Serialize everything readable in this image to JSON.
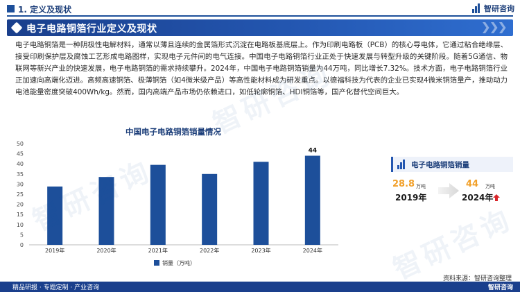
{
  "header": {
    "section_label": "1. 定义及现状",
    "logo_text": "智研咨询"
  },
  "banner": {
    "title": "电子电路铜箔行业定义及现状"
  },
  "paragraph": "电子电路铜箔是一种阴极性电解材料，通常以薄且连续的金属箔形式沉淀在电路板基底层上。作为印刷电路板（PCB）的核心导电体，它通过粘合绝缘层、接受印刷保护层及腐蚀工艺形成电路图样，实现电子元件间的电气连接。中国电子电路铜箔行业正处于快速发展与转型升级的关键阶段。随着5G通信、物联网等新兴产业的快速发展，电子电路铜箔的需求持续攀升。2024年，中国电子电路铜箔销量为44万吨，同比增长7.32%。技术方面，电子电路铜箔行业正加速向高端化迈进。高频高速铜箔、极薄铜箔（如4微米级产品）等高性能材料成为研发重点。以德福科技为代表的企业已实现4微米铜箔量产，推动动力电池能量密度突破400Wh/kg。然而，国内高端产品市场仍依赖进口，如低轮廓铜箔、HDI铜箔等，国产化替代空间巨大。",
  "chart_data": {
    "type": "bar",
    "title": "中国电子电路铜箔销量情况",
    "categories": [
      "2019年",
      "2020年",
      "2021年",
      "2022年",
      "2023年",
      "2024年"
    ],
    "series": [
      {
        "name": "销量（万吨）",
        "values": [
          28.8,
          33.5,
          39.5,
          35.0,
          41.0,
          44
        ]
      }
    ],
    "data_labels": {
      "2024年": "44"
    },
    "yticks": [
      0,
      5,
      10,
      15,
      20,
      25,
      30,
      35,
      40,
      45,
      50
    ],
    "ylim": [
      0,
      50
    ],
    "grid": false,
    "legend": "bottom-left",
    "bar_color": "#1d4f9a"
  },
  "card": {
    "title": "电子电路铜箔销量",
    "left_value": "28.8",
    "left_unit": "万吨",
    "left_year": "2019年",
    "right_value": "44",
    "right_unit": "万吨",
    "right_year": "2024年"
  },
  "source": "资料来源：智研咨询整理",
  "footer": {
    "text": "精品研报 · 专题定制 · 产业咨询",
    "logo_text": "智研咨询"
  },
  "watermark": "智研咨询",
  "colors": {
    "primary": "#1d4f9a",
    "accent": "#f1a02a",
    "arrow_up": "#d9262b"
  }
}
